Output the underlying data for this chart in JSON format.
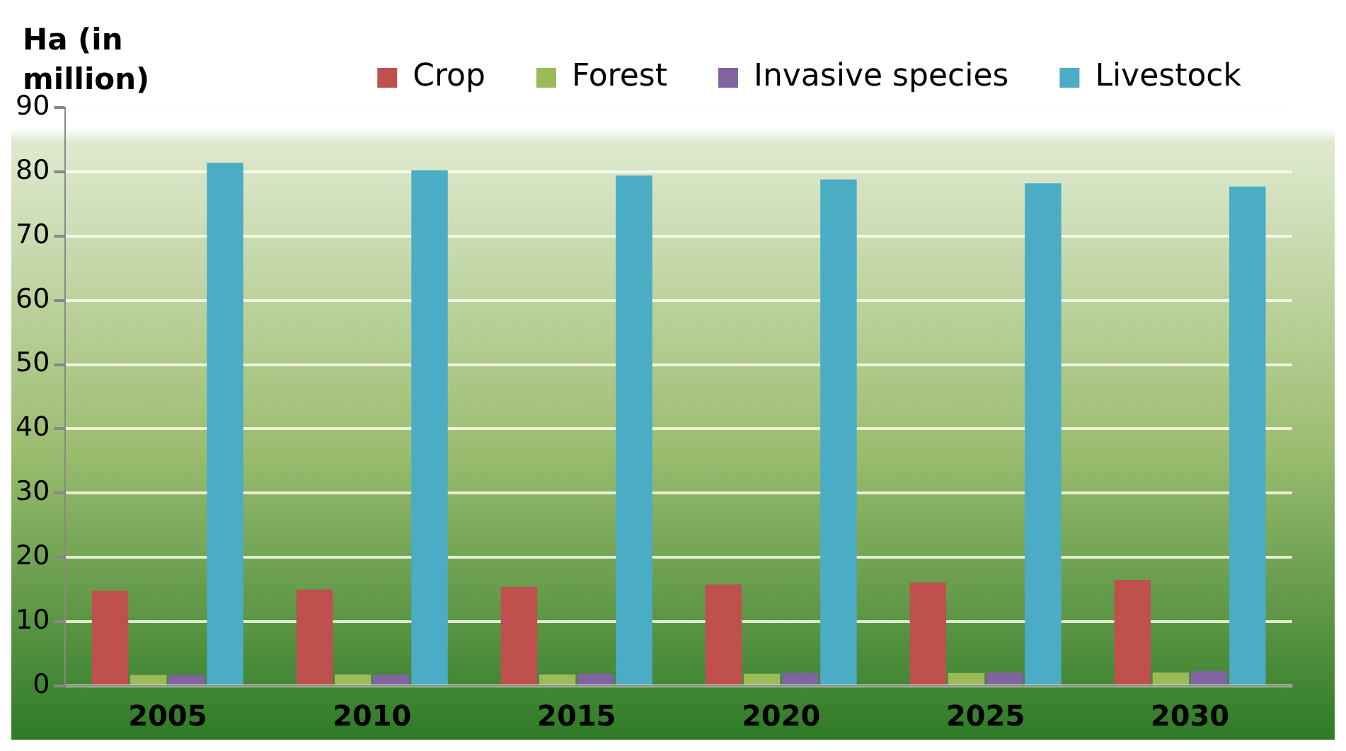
{
  "chart_data": {
    "type": "bar",
    "ylabel": "Ha (in million)",
    "categories": [
      "2005",
      "2010",
      "2015",
      "2020",
      "2025",
      "2030"
    ],
    "series": [
      {
        "name": "Crop",
        "color": "#c0504d",
        "values": [
          14.8,
          15,
          15.4,
          15.8,
          16.1,
          16.5
        ]
      },
      {
        "name": "Forest",
        "color": "#9bbb59",
        "values": [
          1.7,
          1.8,
          1.8,
          1.9,
          2,
          2.1
        ]
      },
      {
        "name": "Invasive species",
        "color": "#8064a2",
        "values": [
          1.7,
          1.8,
          1.9,
          2,
          2.1,
          2.3
        ]
      },
      {
        "name": "Livestock",
        "color": "#4bacc6",
        "values": [
          81.4,
          80.2,
          79.4,
          78.8,
          78.2,
          77.7
        ]
      }
    ],
    "ylim": [
      0,
      90
    ],
    "yticks": [
      0,
      10,
      20,
      30,
      40,
      50,
      60,
      70,
      80,
      90
    ],
    "grid": "y",
    "legend": "top"
  }
}
